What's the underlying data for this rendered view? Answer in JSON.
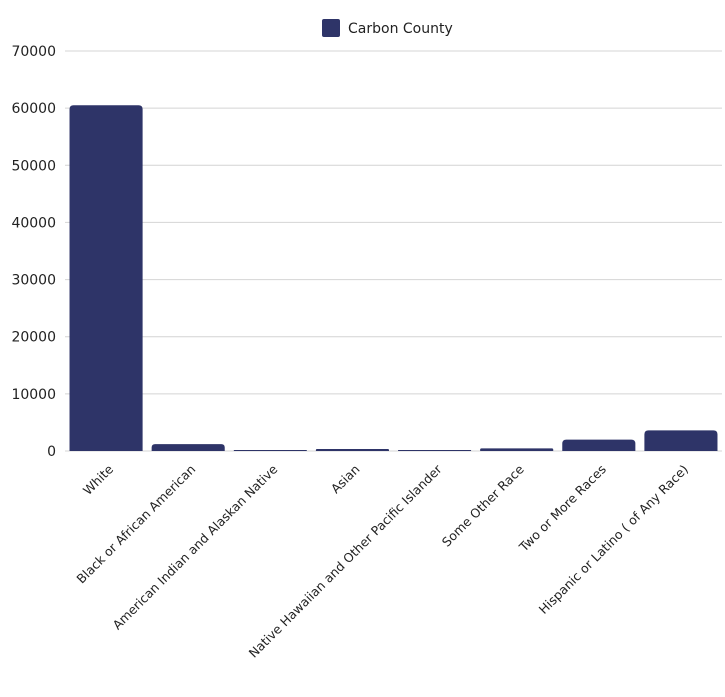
{
  "chart_data": {
    "type": "bar",
    "categories": [
      "White",
      "Black or African American",
      "American Indian and Alaskan Native",
      "Asian",
      "Native Hawaiian and Other Pacific Islander",
      "Some Other Race",
      "Two or More Races",
      "Hispanic or Latino ( of Any Race)"
    ],
    "series": [
      {
        "name": "Carbon County",
        "values": [
          60500,
          1200,
          150,
          350,
          30,
          450,
          2000,
          3600
        ]
      }
    ],
    "yticks": [
      "0",
      "10000",
      "20000",
      "30000",
      "40000",
      "50000",
      "60000",
      "70000"
    ],
    "ylim": [
      0,
      70000
    ],
    "grid": true,
    "legend_position": "top-center",
    "colors": {
      "bar": "#2e3468",
      "grid": "#d4d4d4",
      "text": "#222222"
    }
  }
}
